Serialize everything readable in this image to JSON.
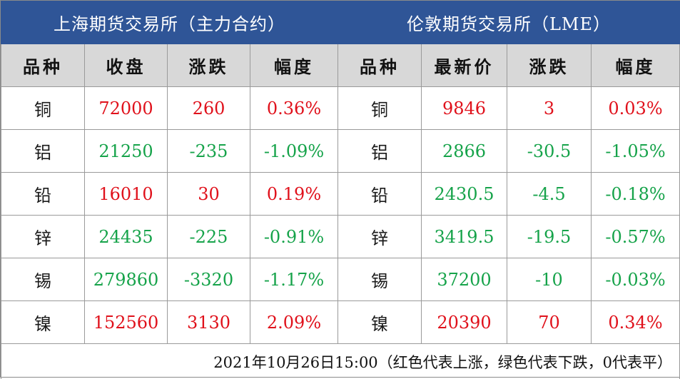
{
  "titles": {
    "shfe": "上海期货交易所（主力合约）",
    "lme": "伦敦期货交易所（LME）"
  },
  "headers": {
    "shfe": [
      "品种",
      "收盘",
      "涨跌",
      "幅度"
    ],
    "lme": [
      "品种",
      "最新价",
      "涨跌",
      "幅度"
    ]
  },
  "rows": [
    {
      "shfe": {
        "name": "铜",
        "price": "72000",
        "change": "260",
        "pct": "0.36%",
        "dir": "up"
      },
      "lme": {
        "name": "铜",
        "price": "9846",
        "change": "3",
        "pct": "0.03%",
        "dir": "up"
      }
    },
    {
      "shfe": {
        "name": "铝",
        "price": "21250",
        "change": "-235",
        "pct": "-1.09%",
        "dir": "down"
      },
      "lme": {
        "name": "铝",
        "price": "2866",
        "change": "-30.5",
        "pct": "-1.05%",
        "dir": "down"
      }
    },
    {
      "shfe": {
        "name": "铅",
        "price": "16010",
        "change": "30",
        "pct": "0.19%",
        "dir": "up"
      },
      "lme": {
        "name": "铅",
        "price": "2430.5",
        "change": "-4.5",
        "pct": "-0.18%",
        "dir": "down"
      }
    },
    {
      "shfe": {
        "name": "锌",
        "price": "24435",
        "change": "-225",
        "pct": "-0.91%",
        "dir": "down"
      },
      "lme": {
        "name": "锌",
        "price": "3419.5",
        "change": "-19.5",
        "pct": "-0.57%",
        "dir": "down"
      }
    },
    {
      "shfe": {
        "name": "锡",
        "price": "279860",
        "change": "-3320",
        "pct": "-1.17%",
        "dir": "down"
      },
      "lme": {
        "name": "锡",
        "price": "37200",
        "change": "-10",
        "pct": "-0.03%",
        "dir": "down"
      }
    },
    {
      "shfe": {
        "name": "镍",
        "price": "152560",
        "change": "3130",
        "pct": "2.09%",
        "dir": "up"
      },
      "lme": {
        "name": "镍",
        "price": "20390",
        "change": "70",
        "pct": "0.34%",
        "dir": "up"
      }
    }
  ],
  "footer": "2021年10月26日15:00（红色代表上涨，绿色代表下跌，0代表平）",
  "colors": {
    "up": "#e0111b",
    "down": "#16a34a",
    "title_bg": "#2f5597",
    "header_bg": "#d8d8d8"
  }
}
